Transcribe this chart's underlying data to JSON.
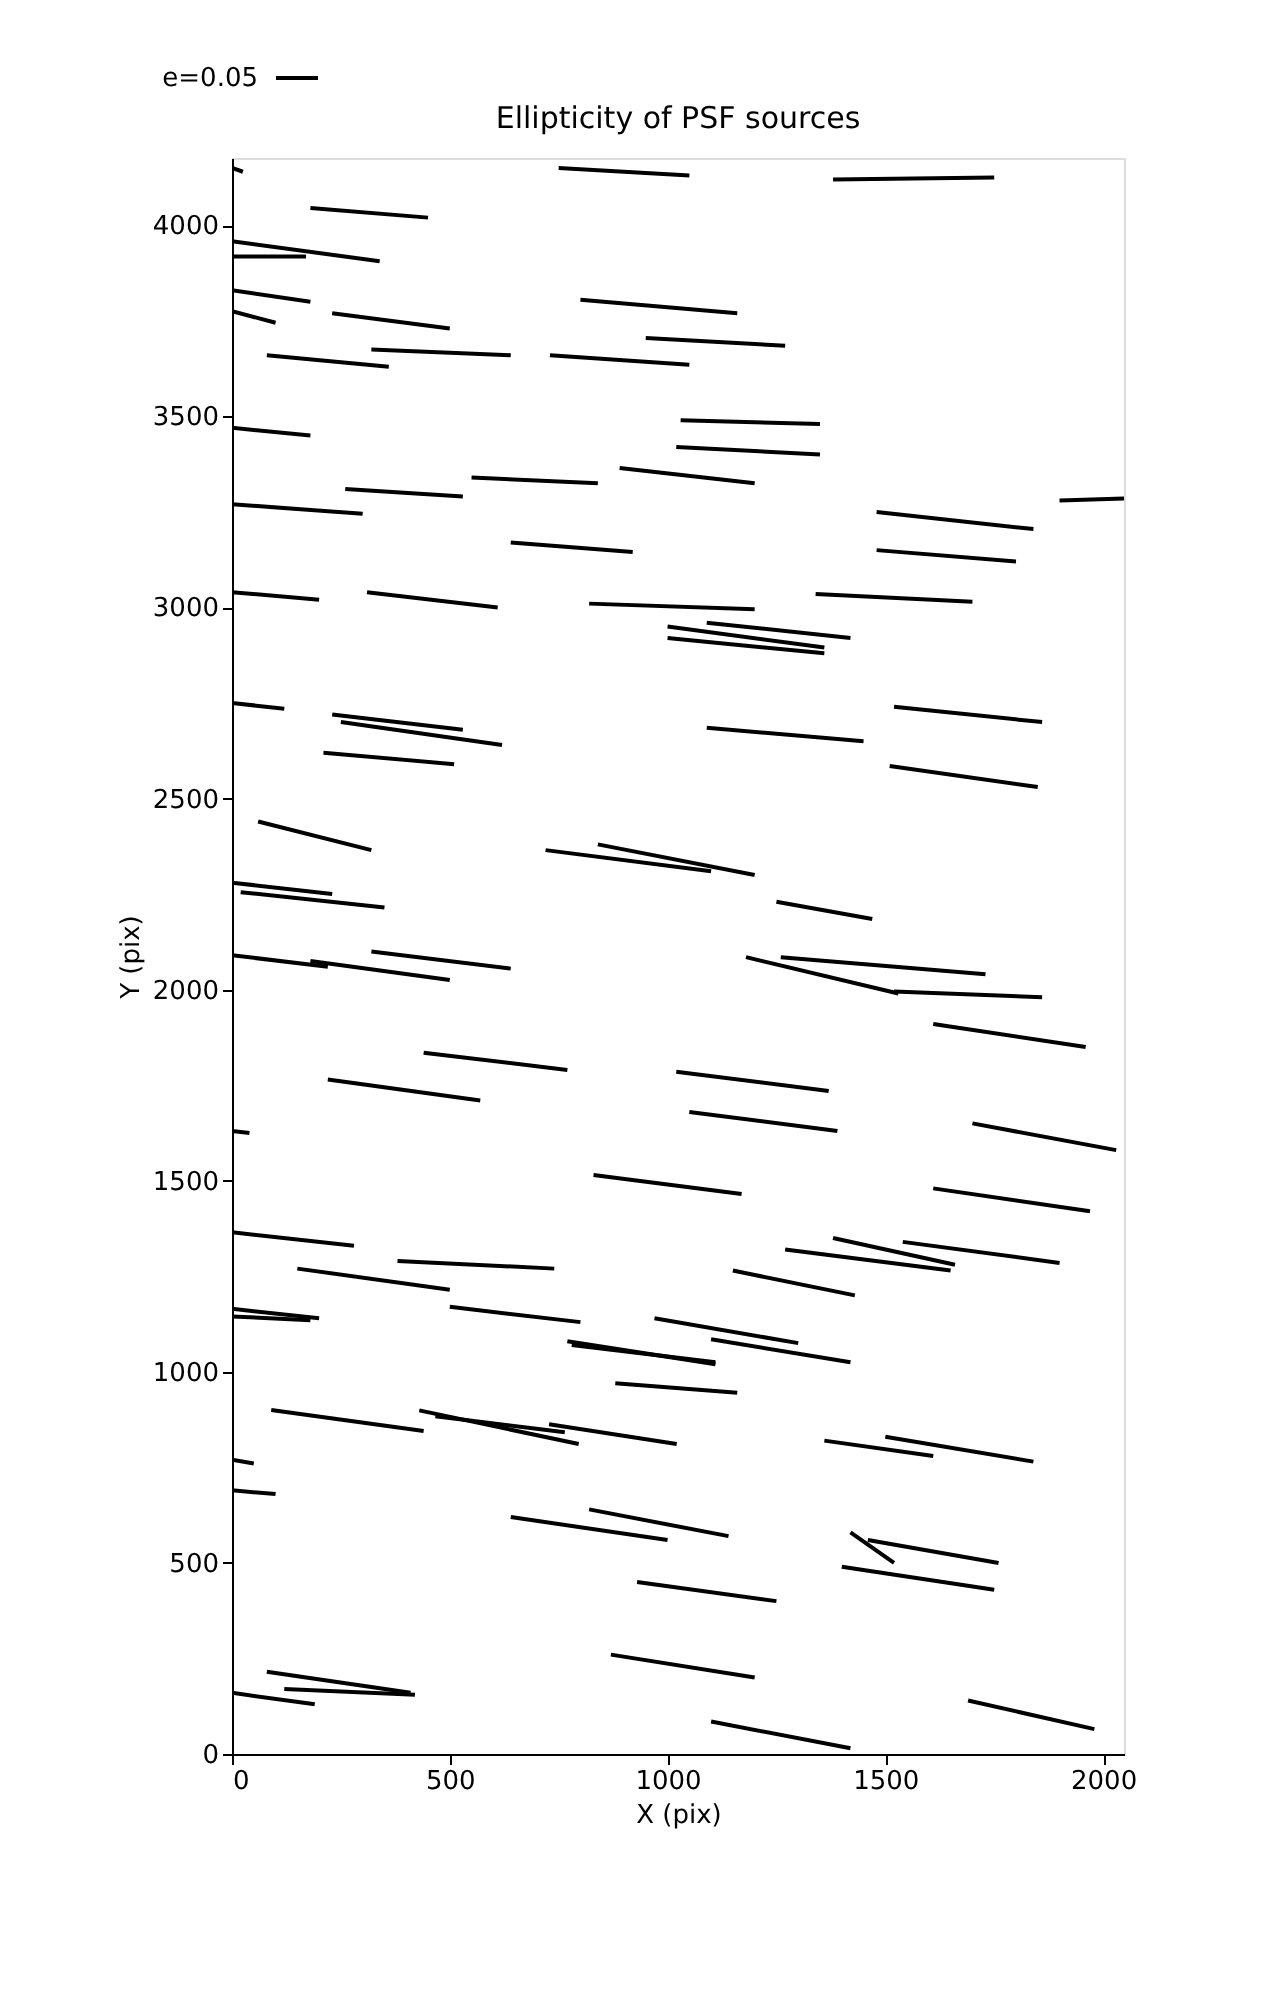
{
  "chart_data": {
    "type": "line",
    "title": "Ellipticity of PSF sources",
    "xlabel": "X (pix)",
    "ylabel": "Y (pix)",
    "xlim": [
      0,
      2048
    ],
    "ylim": [
      0,
      4176
    ],
    "xticks": [
      0,
      500,
      1000,
      1500,
      2000
    ],
    "yticks": [
      0,
      500,
      1000,
      1500,
      2000,
      2500,
      3000,
      3500,
      4000
    ],
    "grid": false,
    "annotations": [
      "e=0.05"
    ],
    "series": [
      {
        "color": "#000000",
        "x": [
          0,
          25
        ],
        "values": [
          4150,
          4140
        ]
      },
      {
        "color": "#000000",
        "x": [
          750,
          1050
        ],
        "values": [
          4150,
          4130
        ]
      },
      {
        "color": "#000000",
        "x": [
          1380,
          1750
        ],
        "values": [
          4120,
          4125
        ]
      },
      {
        "color": "#000000",
        "x": [
          180,
          450
        ],
        "values": [
          4045,
          4020
        ]
      },
      {
        "color": "#000000",
        "x": [
          0,
          339
        ],
        "values": [
          3958,
          3906
        ]
      },
      {
        "color": "#000000",
        "x": [
          0,
          170
        ],
        "values": [
          3918,
          3918
        ]
      },
      {
        "color": "#000000",
        "x": [
          0,
          180
        ],
        "values": [
          3830,
          3800
        ]
      },
      {
        "color": "#000000",
        "x": [
          0,
          100
        ],
        "values": [
          3775,
          3745
        ]
      },
      {
        "color": "#000000",
        "x": [
          230,
          500
        ],
        "values": [
          3770,
          3730
        ]
      },
      {
        "color": "#000000",
        "x": [
          80,
          360
        ],
        "values": [
          3660,
          3630
        ]
      },
      {
        "color": "#000000",
        "x": [
          320,
          640
        ],
        "values": [
          3675,
          3660
        ]
      },
      {
        "color": "#000000",
        "x": [
          730,
          1050
        ],
        "values": [
          3660,
          3635
        ]
      },
      {
        "color": "#000000",
        "x": [
          800,
          1160
        ],
        "values": [
          3805,
          3770
        ]
      },
      {
        "color": "#000000",
        "x": [
          950,
          1270
        ],
        "values": [
          3705,
          3685
        ]
      },
      {
        "color": "#000000",
        "x": [
          1030,
          1350
        ],
        "values": [
          3490,
          3480
        ]
      },
      {
        "color": "#000000",
        "x": [
          1020,
          1350
        ],
        "values": [
          3420,
          3400
        ]
      },
      {
        "color": "#000000",
        "x": [
          0,
          180
        ],
        "values": [
          3470,
          3450
        ]
      },
      {
        "color": "#000000",
        "x": [
          260,
          530
        ],
        "values": [
          3310,
          3290
        ]
      },
      {
        "color": "#000000",
        "x": [
          550,
          840
        ],
        "values": [
          3340,
          3325
        ]
      },
      {
        "color": "#000000",
        "x": [
          890,
          1200
        ],
        "values": [
          3365,
          3325
        ]
      },
      {
        "color": "#000000",
        "x": [
          0,
          300
        ],
        "values": [
          3270,
          3245
        ]
      },
      {
        "color": "#000000",
        "x": [
          1480,
          1840
        ],
        "values": [
          3250,
          3205
        ]
      },
      {
        "color": "#000000",
        "x": [
          1480,
          1800
        ],
        "values": [
          3150,
          3120
        ]
      },
      {
        "color": "#000000",
        "x": [
          1900,
          2048
        ],
        "values": [
          3280,
          3285
        ]
      },
      {
        "color": "#000000",
        "x": [
          640,
          920
        ],
        "values": [
          3170,
          3145
        ]
      },
      {
        "color": "#000000",
        "x": [
          0,
          200
        ],
        "values": [
          3040,
          3020
        ]
      },
      {
        "color": "#000000",
        "x": [
          310,
          610
        ],
        "values": [
          3040,
          3000
        ]
      },
      {
        "color": "#000000",
        "x": [
          820,
          1200
        ],
        "values": [
          3010,
          2995
        ]
      },
      {
        "color": "#000000",
        "x": [
          1340,
          1700
        ],
        "values": [
          3035,
          3015
        ]
      },
      {
        "color": "#000000",
        "x": [
          1000,
          1360
        ],
        "values": [
          2950,
          2895
        ]
      },
      {
        "color": "#000000",
        "x": [
          1000,
          1360
        ],
        "values": [
          2920,
          2880
        ]
      },
      {
        "color": "#000000",
        "x": [
          1090,
          1420
        ],
        "values": [
          2960,
          2920
        ]
      },
      {
        "color": "#000000",
        "x": [
          0,
          120
        ],
        "values": [
          2750,
          2735
        ]
      },
      {
        "color": "#000000",
        "x": [
          230,
          530
        ],
        "values": [
          2720,
          2680
        ]
      },
      {
        "color": "#000000",
        "x": [
          250,
          620
        ],
        "values": [
          2700,
          2640
        ]
      },
      {
        "color": "#000000",
        "x": [
          210,
          510
        ],
        "values": [
          2620,
          2590
        ]
      },
      {
        "color": "#000000",
        "x": [
          1090,
          1450
        ],
        "values": [
          2685,
          2650
        ]
      },
      {
        "color": "#000000",
        "x": [
          1520,
          1860
        ],
        "values": [
          2740,
          2700
        ]
      },
      {
        "color": "#000000",
        "x": [
          1510,
          1850
        ],
        "values": [
          2585,
          2530
        ]
      },
      {
        "color": "#000000",
        "x": [
          60,
          320
        ],
        "values": [
          2440,
          2365
        ]
      },
      {
        "color": "#000000",
        "x": [
          720,
          1100
        ],
        "values": [
          2365,
          2310
        ]
      },
      {
        "color": "#000000",
        "x": [
          840,
          1200
        ],
        "values": [
          2380,
          2300
        ]
      },
      {
        "color": "#000000",
        "x": [
          1250,
          1470
        ],
        "values": [
          2230,
          2185
        ]
      },
      {
        "color": "#000000",
        "x": [
          0,
          230
        ],
        "values": [
          2280,
          2250
        ]
      },
      {
        "color": "#000000",
        "x": [
          20,
          350
        ],
        "values": [
          2255,
          2215
        ]
      },
      {
        "color": "#000000",
        "x": [
          0,
          220
        ],
        "values": [
          2090,
          2060
        ]
      },
      {
        "color": "#000000",
        "x": [
          180,
          500
        ],
        "values": [
          2075,
          2025
        ]
      },
      {
        "color": "#000000",
        "x": [
          320,
          640
        ],
        "values": [
          2100,
          2055
        ]
      },
      {
        "color": "#000000",
        "x": [
          1180,
          1530
        ],
        "values": [
          2085,
          1990
        ]
      },
      {
        "color": "#000000",
        "x": [
          1520,
          1860
        ],
        "values": [
          1995,
          1980
        ]
      },
      {
        "color": "#000000",
        "x": [
          1260,
          1730
        ],
        "values": [
          2085,
          2040
        ]
      },
      {
        "color": "#000000",
        "x": [
          1610,
          1960
        ],
        "values": [
          1910,
          1850
        ]
      },
      {
        "color": "#000000",
        "x": [
          0,
          40
        ],
        "values": [
          1630,
          1625
        ]
      },
      {
        "color": "#000000",
        "x": [
          440,
          770
        ],
        "values": [
          1835,
          1790
        ]
      },
      {
        "color": "#000000",
        "x": [
          220,
          570
        ],
        "values": [
          1765,
          1710
        ]
      },
      {
        "color": "#000000",
        "x": [
          1020,
          1370
        ],
        "values": [
          1785,
          1735
        ]
      },
      {
        "color": "#000000",
        "x": [
          1050,
          1390
        ],
        "values": [
          1680,
          1630
        ]
      },
      {
        "color": "#000000",
        "x": [
          1700,
          2030
        ],
        "values": [
          1650,
          1580
        ]
      },
      {
        "color": "#000000",
        "x": [
          830,
          1170
        ],
        "values": [
          1515,
          1465
        ]
      },
      {
        "color": "#000000",
        "x": [
          1610,
          1970
        ],
        "values": [
          1480,
          1420
        ]
      },
      {
        "color": "#000000",
        "x": [
          0,
          280
        ],
        "values": [
          1365,
          1330
        ]
      },
      {
        "color": "#000000",
        "x": [
          150,
          500
        ],
        "values": [
          1270,
          1215
        ]
      },
      {
        "color": "#000000",
        "x": [
          380,
          740
        ],
        "values": [
          1290,
          1270
        ]
      },
      {
        "color": "#000000",
        "x": [
          1270,
          1650
        ],
        "values": [
          1320,
          1265
        ]
      },
      {
        "color": "#000000",
        "x": [
          1380,
          1660
        ],
        "values": [
          1350,
          1280
        ]
      },
      {
        "color": "#000000",
        "x": [
          1540,
          1900
        ],
        "values": [
          1340,
          1285
        ]
      },
      {
        "color": "#000000",
        "x": [
          1150,
          1430
        ],
        "values": [
          1265,
          1200
        ]
      },
      {
        "color": "#000000",
        "x": [
          0,
          200
        ],
        "values": [
          1165,
          1140
        ]
      },
      {
        "color": "#000000",
        "x": [
          0,
          180
        ],
        "values": [
          1145,
          1135
        ]
      },
      {
        "color": "#000000",
        "x": [
          500,
          800
        ],
        "values": [
          1170,
          1130
        ]
      },
      {
        "color": "#000000",
        "x": [
          770,
          1110
        ],
        "values": [
          1080,
          1020
        ]
      },
      {
        "color": "#000000",
        "x": [
          780,
          1110
        ],
        "values": [
          1070,
          1025
        ]
      },
      {
        "color": "#000000",
        "x": [
          970,
          1300
        ],
        "values": [
          1140,
          1075
        ]
      },
      {
        "color": "#000000",
        "x": [
          1100,
          1420
        ],
        "values": [
          1085,
          1025
        ]
      },
      {
        "color": "#000000",
        "x": [
          880,
          1160
        ],
        "values": [
          970,
          945
        ]
      },
      {
        "color": "#000000",
        "x": [
          90,
          440
        ],
        "values": [
          900,
          845
        ]
      },
      {
        "color": "#000000",
        "x": [
          430,
          796
        ],
        "values": [
          899,
          811
        ]
      },
      {
        "color": "#000000",
        "x": [
          467,
          764
        ],
        "values": [
          884,
          842
        ]
      },
      {
        "color": "#000000",
        "x": [
          728,
          1021
        ],
        "values": [
          863,
          811
        ]
      },
      {
        "color": "#000000",
        "x": [
          0,
          50
        ],
        "values": [
          770,
          760
        ]
      },
      {
        "color": "#000000",
        "x": [
          0,
          100
        ],
        "values": [
          690,
          680
        ]
      },
      {
        "color": "#000000",
        "x": [
          1360,
          1610
        ],
        "values": [
          820,
          780
        ]
      },
      {
        "color": "#000000",
        "x": [
          1500,
          1840
        ],
        "values": [
          830,
          765
        ]
      },
      {
        "color": "#000000",
        "x": [
          640,
          1000
        ],
        "values": [
          620,
          560
        ]
      },
      {
        "color": "#000000",
        "x": [
          820,
          1140
        ],
        "values": [
          640,
          570
        ]
      },
      {
        "color": "#000000",
        "x": [
          1420,
          1520
        ],
        "values": [
          580,
          500
        ]
      },
      {
        "color": "#000000",
        "x": [
          1460,
          1760
        ],
        "values": [
          560,
          500
        ]
      },
      {
        "color": "#000000",
        "x": [
          1400,
          1750
        ],
        "values": [
          490,
          430
        ]
      },
      {
        "color": "#000000",
        "x": [
          930,
          1250
        ],
        "values": [
          450,
          400
        ]
      },
      {
        "color": "#000000",
        "x": [
          0,
          190
        ],
        "values": [
          160,
          130
        ]
      },
      {
        "color": "#000000",
        "x": [
          80,
          410
        ],
        "values": [
          215,
          160
        ]
      },
      {
        "color": "#000000",
        "x": [
          120,
          420
        ],
        "values": [
          170,
          155
        ]
      },
      {
        "color": "#000000",
        "x": [
          870,
          1200
        ],
        "values": [
          260,
          200
        ]
      },
      {
        "color": "#000000",
        "x": [
          1100,
          1420
        ],
        "values": [
          85,
          15
        ]
      },
      {
        "color": "#000000",
        "x": [
          1690,
          1980
        ],
        "values": [
          140,
          65
        ]
      }
    ]
  }
}
